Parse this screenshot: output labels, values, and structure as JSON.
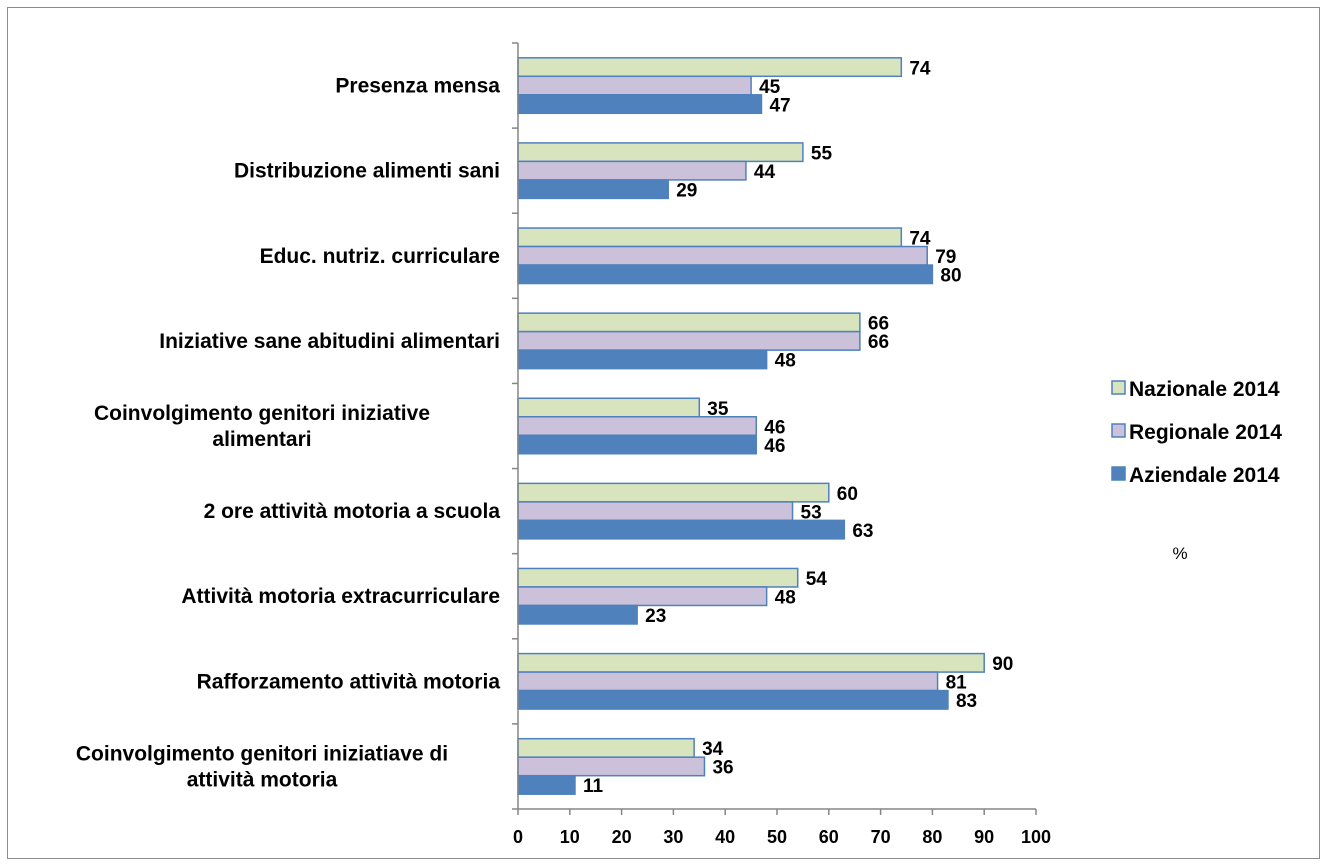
{
  "chart_data": {
    "type": "bar",
    "orientation": "horizontal",
    "title": "",
    "xlabel": "",
    "ylabel": "",
    "unit_note": "%",
    "xlim": [
      0,
      100
    ],
    "xticks": [
      0,
      10,
      20,
      30,
      40,
      50,
      60,
      70,
      80,
      90,
      100
    ],
    "grid": false,
    "legend_position": "right",
    "categories": [
      [
        "Presenza mensa"
      ],
      [
        "Distribuzione alimenti sani"
      ],
      [
        "Educ. nutriz. curriculare"
      ],
      [
        "Iniziative sane abitudini alimentari"
      ],
      [
        "Coinvolgimento genitori iniziative",
        "alimentari"
      ],
      [
        "2 ore attività motoria a scuola"
      ],
      [
        "Attività motoria extracurriculare"
      ],
      [
        "Rafforzamento attività motoria"
      ],
      [
        "Coinvolgimento genitori iniziatiave di",
        "attività motoria"
      ]
    ],
    "series": [
      {
        "name": "Nazionale 2014",
        "color": "#d7e4bd",
        "border": "#4f81bd",
        "values": [
          74,
          55,
          74,
          66,
          35,
          60,
          54,
          90,
          34
        ]
      },
      {
        "name": "Regionale 2014",
        "color": "#ccc1da",
        "border": "#4f81bd",
        "values": [
          45,
          44,
          79,
          66,
          46,
          53,
          48,
          81,
          36
        ]
      },
      {
        "name": "Aziendale 2014",
        "color": "#4f81bd",
        "border": "#4f81bd",
        "values": [
          47,
          29,
          80,
          48,
          46,
          63,
          23,
          83,
          11
        ]
      }
    ]
  }
}
